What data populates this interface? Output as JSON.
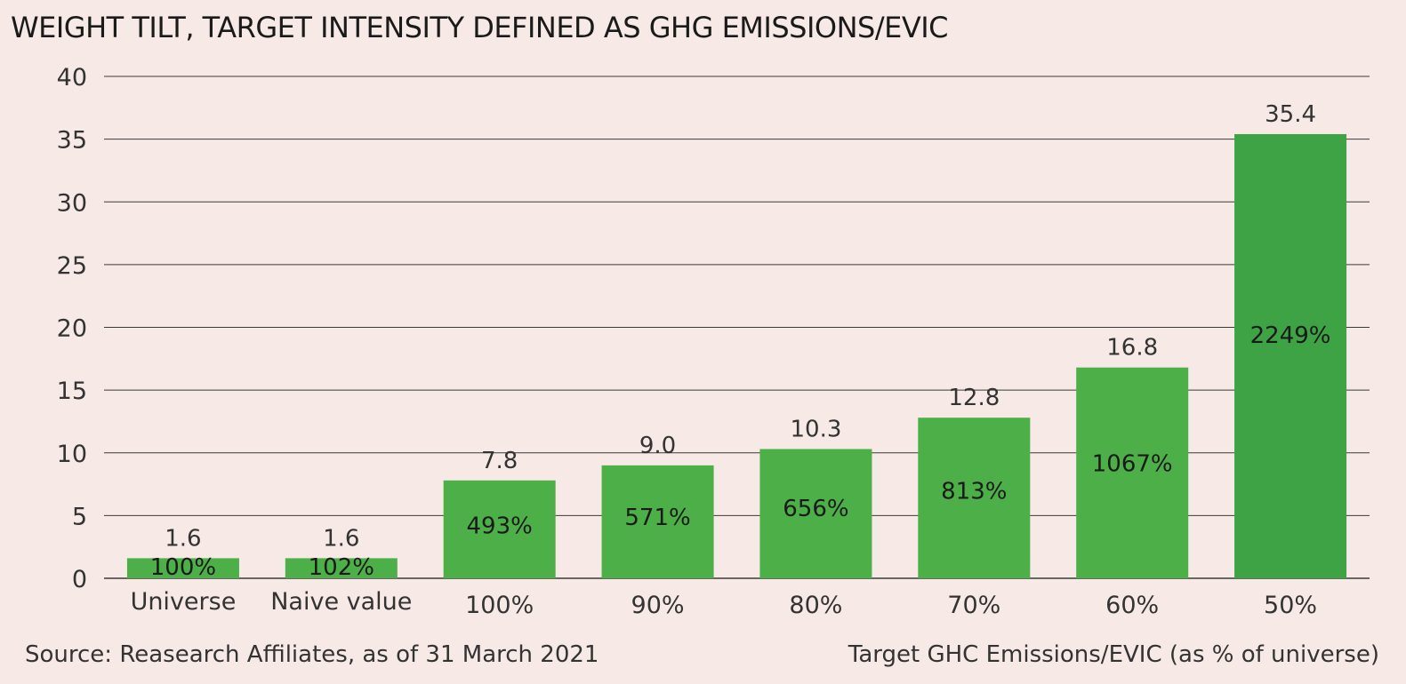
{
  "chart_data": {
    "type": "bar",
    "title": "WEIGHT TILT, TARGET INTENSITY DEFINED AS GHG EMISSIONS/EVIC",
    "categories": [
      "Universe",
      "Naive value",
      "100%",
      "90%",
      "80%",
      "70%",
      "60%",
      "50%"
    ],
    "values": [
      1.6,
      1.6,
      7.8,
      9.0,
      10.3,
      12.8,
      16.8,
      35.4
    ],
    "value_labels": [
      "1.6",
      "1.6",
      "7.8",
      "9.0",
      "10.3",
      "12.8",
      "16.8",
      "35.4"
    ],
    "inner_labels": [
      "100%",
      "102%",
      "493%",
      "571%",
      "656%",
      "813%",
      "1067%",
      "2249%"
    ],
    "ylim": [
      0,
      40
    ],
    "yticks": [
      0,
      5,
      10,
      15,
      20,
      25,
      30,
      35,
      40
    ],
    "xlabel": "Target GHC Emissions/EVIC (as % of universe)",
    "ylabel": "",
    "grid": true,
    "source": "Source: Reasearch Affiliates, as of 31 March 2021",
    "colors": {
      "bar": "#4caf48",
      "bar_highlight": "#3da344",
      "grid": "#3a3a3a"
    }
  }
}
